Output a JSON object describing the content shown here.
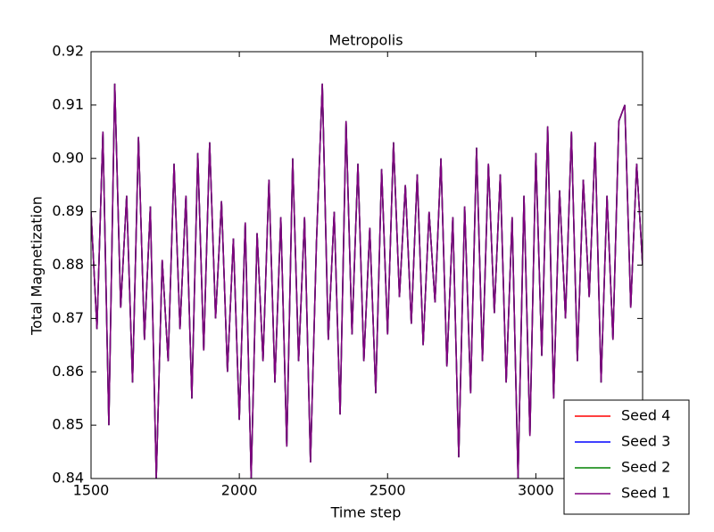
{
  "chart_data": {
    "type": "line",
    "title": "Metropolis",
    "xlabel": "Time step",
    "ylabel": "Total Magnetization",
    "x": [
      1500,
      1520,
      1540,
      1560,
      1580,
      1600,
      1620,
      1640,
      1660,
      1680,
      1700,
      1720,
      1740,
      1760,
      1780,
      1800,
      1820,
      1840,
      1860,
      1880,
      1900,
      1920,
      1940,
      1960,
      1980,
      2000,
      2020,
      2040,
      2060,
      2080,
      2100,
      2120,
      2140,
      2160,
      2180,
      2200,
      2220,
      2240,
      2260,
      2280,
      2300,
      2320,
      2340,
      2360,
      2380,
      2400,
      2420,
      2440,
      2460,
      2480,
      2500,
      2520,
      2540,
      2560,
      2580,
      2600,
      2620,
      2640,
      2660,
      2680,
      2700,
      2720,
      2740,
      2760,
      2780,
      2800,
      2820,
      2840,
      2860,
      2880,
      2900,
      2920,
      2940,
      2960,
      2980,
      3000,
      3020,
      3040,
      3060,
      3080,
      3100,
      3120,
      3140,
      3160,
      3180,
      3200,
      3220,
      3240,
      3260,
      3280,
      3300,
      3320,
      3340,
      3360
    ],
    "series": [
      {
        "name": "Seed 4",
        "color": "#ff0000",
        "values": [
          0.89,
          0.868,
          0.905,
          0.85,
          0.914,
          0.872,
          0.893,
          0.858,
          0.904,
          0.866,
          0.891,
          0.84,
          0.881,
          0.862,
          0.899,
          0.868,
          0.893,
          0.855,
          0.901,
          0.864,
          0.903,
          0.87,
          0.892,
          0.86,
          0.885,
          0.851,
          0.888,
          0.84,
          0.886,
          0.862,
          0.896,
          0.858,
          0.889,
          0.846,
          0.9,
          0.862,
          0.889,
          0.843,
          0.884,
          0.914,
          0.866,
          0.89,
          0.852,
          0.907,
          0.867,
          0.899,
          0.862,
          0.887,
          0.856,
          0.898,
          0.867,
          0.903,
          0.874,
          0.895,
          0.869,
          0.897,
          0.865,
          0.89,
          0.873,
          0.9,
          0.861,
          0.889,
          0.844,
          0.891,
          0.856,
          0.902,
          0.862,
          0.899,
          0.871,
          0.897,
          0.858,
          0.889,
          0.84,
          0.893,
          0.848,
          0.901,
          0.863,
          0.906,
          0.855,
          0.894,
          0.87,
          0.905,
          0.862,
          0.896,
          0.874,
          0.903,
          0.858,
          0.893,
          0.866,
          0.907,
          0.91,
          0.872,
          0.899,
          0.88
        ]
      },
      {
        "name": "Seed 3",
        "color": "#0000ff",
        "values": [
          0.89,
          0.868,
          0.905,
          0.85,
          0.914,
          0.872,
          0.893,
          0.858,
          0.904,
          0.866,
          0.891,
          0.84,
          0.881,
          0.862,
          0.899,
          0.868,
          0.893,
          0.855,
          0.901,
          0.864,
          0.903,
          0.87,
          0.892,
          0.86,
          0.885,
          0.851,
          0.888,
          0.84,
          0.886,
          0.862,
          0.896,
          0.858,
          0.889,
          0.846,
          0.9,
          0.862,
          0.889,
          0.843,
          0.884,
          0.914,
          0.866,
          0.89,
          0.852,
          0.907,
          0.867,
          0.899,
          0.862,
          0.887,
          0.856,
          0.898,
          0.867,
          0.903,
          0.874,
          0.895,
          0.869,
          0.897,
          0.865,
          0.89,
          0.873,
          0.9,
          0.861,
          0.889,
          0.844,
          0.891,
          0.856,
          0.902,
          0.862,
          0.899,
          0.871,
          0.897,
          0.858,
          0.889,
          0.84,
          0.893,
          0.848,
          0.901,
          0.863,
          0.906,
          0.855,
          0.894,
          0.87,
          0.905,
          0.862,
          0.896,
          0.874,
          0.903,
          0.858,
          0.893,
          0.866,
          0.907,
          0.91,
          0.872,
          0.899,
          0.88
        ]
      },
      {
        "name": "Seed 2",
        "color": "#008000",
        "values": [
          0.89,
          0.868,
          0.905,
          0.85,
          0.914,
          0.872,
          0.893,
          0.858,
          0.904,
          0.866,
          0.891,
          0.84,
          0.881,
          0.862,
          0.899,
          0.868,
          0.893,
          0.855,
          0.901,
          0.864,
          0.903,
          0.87,
          0.892,
          0.86,
          0.885,
          0.851,
          0.888,
          0.84,
          0.886,
          0.862,
          0.896,
          0.858,
          0.889,
          0.846,
          0.9,
          0.862,
          0.889,
          0.843,
          0.884,
          0.914,
          0.866,
          0.89,
          0.852,
          0.907,
          0.867,
          0.899,
          0.862,
          0.887,
          0.856,
          0.898,
          0.867,
          0.903,
          0.874,
          0.895,
          0.869,
          0.897,
          0.865,
          0.89,
          0.873,
          0.9,
          0.861,
          0.889,
          0.844,
          0.891,
          0.856,
          0.902,
          0.862,
          0.899,
          0.871,
          0.897,
          0.858,
          0.889,
          0.84,
          0.893,
          0.848,
          0.901,
          0.863,
          0.906,
          0.855,
          0.894,
          0.87,
          0.905,
          0.862,
          0.896,
          0.874,
          0.903,
          0.858,
          0.893,
          0.866,
          0.907,
          0.91,
          0.872,
          0.899,
          0.88
        ]
      },
      {
        "name": "Seed 1",
        "color": "#800080",
        "values": [
          0.89,
          0.868,
          0.905,
          0.85,
          0.914,
          0.872,
          0.893,
          0.858,
          0.904,
          0.866,
          0.891,
          0.84,
          0.881,
          0.862,
          0.899,
          0.868,
          0.893,
          0.855,
          0.901,
          0.864,
          0.903,
          0.87,
          0.892,
          0.86,
          0.885,
          0.851,
          0.888,
          0.84,
          0.886,
          0.862,
          0.896,
          0.858,
          0.889,
          0.846,
          0.9,
          0.862,
          0.889,
          0.843,
          0.884,
          0.914,
          0.866,
          0.89,
          0.852,
          0.907,
          0.867,
          0.899,
          0.862,
          0.887,
          0.856,
          0.898,
          0.867,
          0.903,
          0.874,
          0.895,
          0.869,
          0.897,
          0.865,
          0.89,
          0.873,
          0.9,
          0.861,
          0.889,
          0.844,
          0.891,
          0.856,
          0.902,
          0.862,
          0.899,
          0.871,
          0.897,
          0.858,
          0.889,
          0.84,
          0.893,
          0.848,
          0.901,
          0.863,
          0.906,
          0.855,
          0.894,
          0.87,
          0.905,
          0.862,
          0.896,
          0.874,
          0.903,
          0.858,
          0.893,
          0.866,
          0.907,
          0.91,
          0.872,
          0.899,
          0.88
        ]
      }
    ],
    "xlim": [
      1500,
      3360
    ],
    "xticks": [
      1500,
      2000,
      2500,
      3000
    ],
    "ylim": [
      0.84,
      0.92
    ],
    "yticks": [
      0.84,
      0.85,
      0.86,
      0.87,
      0.88,
      0.89,
      {
        "value": 0.9,
        "label": "0.90"
      },
      0.91,
      0.92
    ],
    "legend": "lower right"
  }
}
